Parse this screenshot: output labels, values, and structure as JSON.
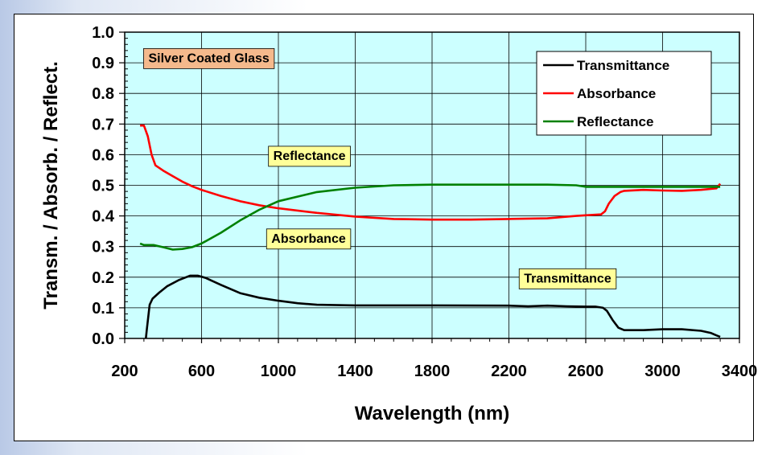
{
  "chart_data": {
    "type": "line",
    "title": "",
    "xlabel": "Wavelength (nm)",
    "ylabel": "Transm. / Absorb. / Reflect.",
    "xlim": [
      200,
      3400
    ],
    "ylim": [
      0.0,
      1.0
    ],
    "xticks": [
      200,
      600,
      1000,
      1400,
      1800,
      2200,
      2600,
      3000,
      3400
    ],
    "xtick_labels": [
      "200",
      "600",
      "1000",
      "1400",
      "1800",
      "2200",
      "2600",
      "3000",
      "3400"
    ],
    "yticks": [
      0.0,
      0.1,
      0.2,
      0.3,
      0.4,
      0.5,
      0.6,
      0.7,
      0.8,
      0.9,
      1.0
    ],
    "ytick_labels": [
      "0.0",
      "0.1",
      "0.2",
      "0.3",
      "0.4",
      "0.5",
      "0.6",
      "0.7",
      "0.8",
      "0.9",
      "1.0"
    ],
    "grid": true,
    "legend_position": "top-right",
    "plot_background": "#ccffff",
    "series": [
      {
        "name": "Transmittance",
        "color": "#000000",
        "x": [
          310,
          315,
          330,
          345,
          380,
          420,
          480,
          540,
          580,
          620,
          700,
          800,
          900,
          1000,
          1100,
          1200,
          1400,
          1800,
          2200,
          2300,
          2400,
          2500,
          2600,
          2650,
          2690,
          2710,
          2740,
          2770,
          2800,
          2900,
          3000,
          3100,
          3200,
          3250,
          3280,
          3300
        ],
        "y": [
          0.0,
          0.03,
          0.11,
          0.13,
          0.15,
          0.17,
          0.19,
          0.205,
          0.205,
          0.198,
          0.175,
          0.148,
          0.133,
          0.123,
          0.115,
          0.11,
          0.108,
          0.108,
          0.107,
          0.105,
          0.107,
          0.105,
          0.104,
          0.104,
          0.1,
          0.09,
          0.06,
          0.035,
          0.027,
          0.027,
          0.03,
          0.03,
          0.025,
          0.018,
          0.01,
          0.005
        ]
      },
      {
        "name": "Absorbance",
        "color": "#ff0000",
        "x": [
          280,
          300,
          320,
          340,
          360,
          400,
          450,
          500,
          550,
          600,
          700,
          800,
          900,
          1000,
          1200,
          1400,
          1600,
          1800,
          2000,
          2200,
          2400,
          2550,
          2600,
          2680,
          2700,
          2720,
          2750,
          2780,
          2800,
          2900,
          3000,
          3100,
          3200,
          3280,
          3300
        ],
        "y": [
          0.695,
          0.695,
          0.66,
          0.6,
          0.565,
          0.548,
          0.53,
          0.512,
          0.497,
          0.485,
          0.465,
          0.448,
          0.435,
          0.425,
          0.41,
          0.398,
          0.39,
          0.388,
          0.388,
          0.39,
          0.392,
          0.4,
          0.402,
          0.405,
          0.415,
          0.44,
          0.465,
          0.478,
          0.482,
          0.485,
          0.483,
          0.482,
          0.485,
          0.49,
          0.505
        ]
      },
      {
        "name": "Reflectance",
        "color": "#008000",
        "x": [
          280,
          300,
          350,
          400,
          450,
          500,
          550,
          600,
          700,
          800,
          900,
          1000,
          1200,
          1400,
          1600,
          1800,
          2000,
          2200,
          2400,
          2550,
          2600,
          2700,
          2800,
          3000,
          3200,
          3300
        ],
        "y": [
          0.31,
          0.305,
          0.305,
          0.298,
          0.29,
          0.292,
          0.298,
          0.31,
          0.345,
          0.385,
          0.42,
          0.448,
          0.478,
          0.492,
          0.5,
          0.502,
          0.502,
          0.502,
          0.502,
          0.5,
          0.495,
          0.495,
          0.495,
          0.495,
          0.495,
          0.495
        ]
      }
    ],
    "annotations": [
      {
        "label": "Silver Coated Glass",
        "x": 290,
        "y": 0.915,
        "fill": "#f5b98c"
      },
      {
        "label": "Reflectance",
        "x": 940,
        "y": 0.596,
        "fill": "#ffff99"
      },
      {
        "label": "Absorbance",
        "x": 930,
        "y": 0.326,
        "fill": "#ffff99"
      },
      {
        "label": "Transmittance",
        "x": 2245,
        "y": 0.196,
        "fill": "#ffff99"
      }
    ]
  }
}
